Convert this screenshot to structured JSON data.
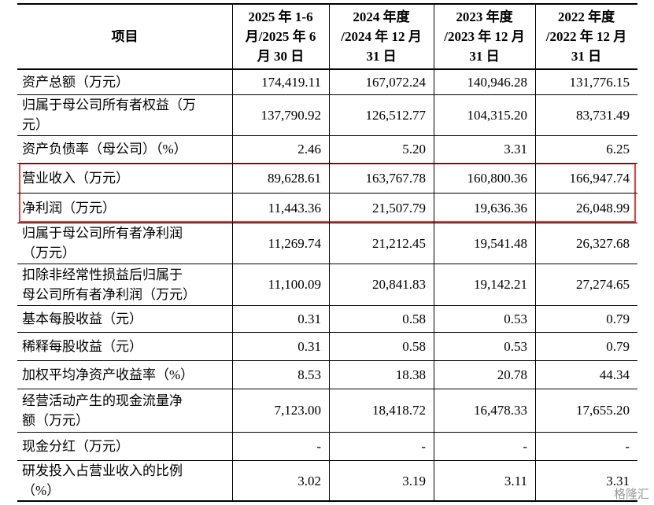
{
  "table": {
    "header": [
      [
        "项目"
      ],
      [
        "2025 年 1-6",
        "月/2025 年 6",
        "月 30 日"
      ],
      [
        "2024 年度",
        "/2024 年 12 月",
        "31 日"
      ],
      [
        "2023 年度",
        "/2023 年 12 月",
        "31 日"
      ],
      [
        "2022 年度",
        "/2022 年 12 月",
        "31 日"
      ]
    ],
    "rows": [
      {
        "label": [
          "资产总额（万元）"
        ],
        "values": [
          "174,419.11",
          "167,072.24",
          "140,946.28",
          "131,776.15"
        ]
      },
      {
        "label": [
          "归属于母公司所有者权益（万",
          "元）"
        ],
        "values": [
          "137,790.92",
          "126,512.77",
          "104,315.20",
          "83,731.49"
        ]
      },
      {
        "label": [
          "资产负债率（母公司）（%）"
        ],
        "values": [
          "2.46",
          "5.20",
          "3.31",
          "6.25"
        ]
      },
      {
        "label": [
          "营业收入（万元）"
        ],
        "values": [
          "89,628.61",
          "163,767.78",
          "160,800.36",
          "166,947.74"
        ]
      },
      {
        "label": [
          "净利润（万元）"
        ],
        "values": [
          "11,443.36",
          "21,507.79",
          "19,636.36",
          "26,048.99"
        ]
      },
      {
        "label": [
          "归属于母公司所有者净利润",
          "（万元）"
        ],
        "values": [
          "11,269.74",
          "21,212.45",
          "19,541.48",
          "26,327.68"
        ]
      },
      {
        "label": [
          "扣除非经常性损益后归属于",
          "母公司所有者净利润（万元）"
        ],
        "values": [
          "11,100.09",
          "20,841.83",
          "19,142.21",
          "27,274.65"
        ]
      },
      {
        "label": [
          "基本每股收益（元）"
        ],
        "values": [
          "0.31",
          "0.58",
          "0.53",
          "0.79"
        ]
      },
      {
        "label": [
          "稀释每股收益（元）"
        ],
        "values": [
          "0.31",
          "0.58",
          "0.53",
          "0.79"
        ]
      },
      {
        "label": [
          "加权平均净资产收益率（%）"
        ],
        "values": [
          "8.53",
          "18.38",
          "20.78",
          "44.34"
        ]
      },
      {
        "label": [
          "经营活动产生的现金流量净",
          "额（万元）"
        ],
        "values": [
          "7,123.00",
          "18,418.72",
          "16,478.33",
          "17,655.20"
        ]
      },
      {
        "label": [
          "现金分红（万元）"
        ],
        "values": [
          "-",
          "-",
          "-",
          "-"
        ]
      },
      {
        "label": [
          "研发投入占营业收入的比例",
          "（%）"
        ],
        "values": [
          "3.02",
          "3.19",
          "3.11",
          "3.31"
        ]
      }
    ]
  },
  "watermark": "格隆汇"
}
